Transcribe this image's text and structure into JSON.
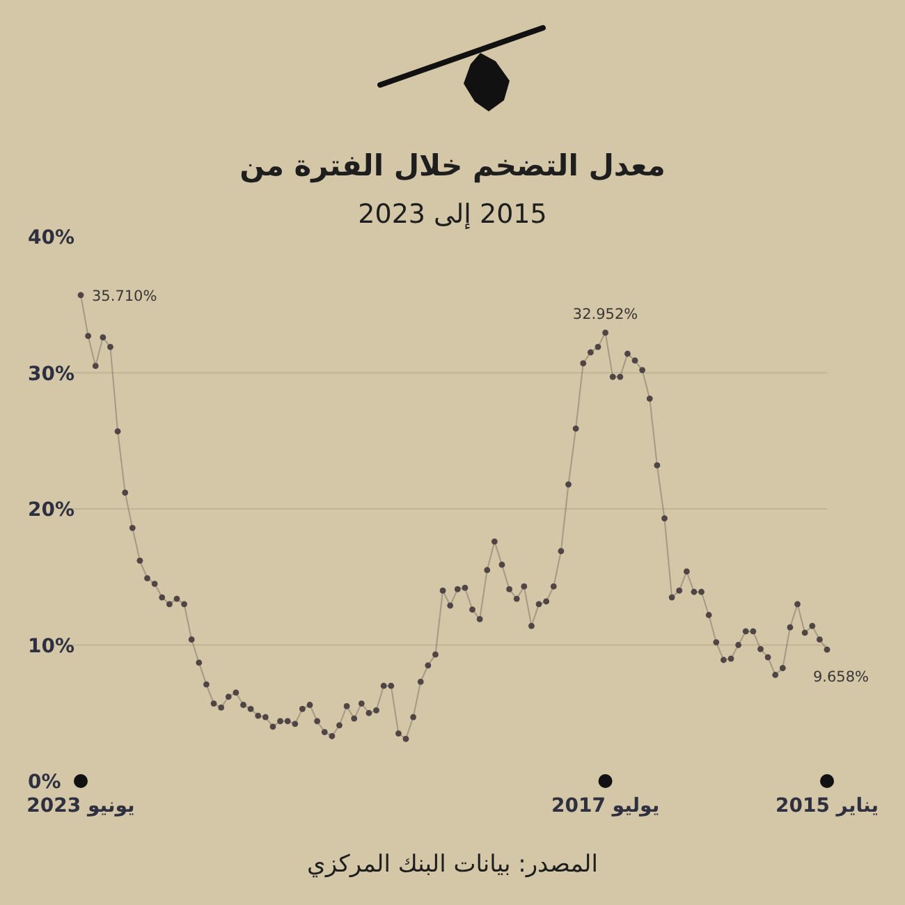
{
  "chart_data": {
    "type": "line",
    "title": "معدل التضخم خلال الفترة من",
    "subtitle": "2015 إلى 2023",
    "x": [
      "2023-06",
      "2023-05",
      "2023-04",
      "2023-03",
      "2023-02",
      "2023-01",
      "2022-12",
      "2022-11",
      "2022-10",
      "2022-09",
      "2022-08",
      "2022-07",
      "2022-06",
      "2022-05",
      "2022-04",
      "2022-03",
      "2022-02",
      "2022-01",
      "2021-12",
      "2021-11",
      "2021-10",
      "2021-09",
      "2021-08",
      "2021-07",
      "2021-06",
      "2021-05",
      "2021-04",
      "2021-03",
      "2021-02",
      "2021-01",
      "2020-12",
      "2020-11",
      "2020-10",
      "2020-09",
      "2020-08",
      "2020-07",
      "2020-06",
      "2020-05",
      "2020-04",
      "2020-03",
      "2020-02",
      "2020-01",
      "2019-12",
      "2019-11",
      "2019-10",
      "2019-09",
      "2019-08",
      "2019-07",
      "2019-06",
      "2019-05",
      "2019-04",
      "2019-03",
      "2019-02",
      "2019-01",
      "2018-12",
      "2018-11",
      "2018-10",
      "2018-09",
      "2018-08",
      "2018-07",
      "2018-06",
      "2018-05",
      "2018-04",
      "2018-03",
      "2018-02",
      "2018-01",
      "2017-12",
      "2017-11",
      "2017-10",
      "2017-09",
      "2017-08",
      "2017-07",
      "2017-06",
      "2017-05",
      "2017-04",
      "2017-03",
      "2017-02",
      "2017-01",
      "2016-12",
      "2016-11",
      "2016-10",
      "2016-09",
      "2016-08",
      "2016-07",
      "2016-06",
      "2016-05",
      "2016-04",
      "2016-03",
      "2016-02",
      "2016-01",
      "2015-12",
      "2015-11",
      "2015-10",
      "2015-09",
      "2015-08",
      "2015-07",
      "2015-06",
      "2015-05",
      "2015-04",
      "2015-03",
      "2015-02",
      "2015-01"
    ],
    "series": [
      {
        "color": "#4f4545",
        "values": [
          35.71,
          32.7,
          30.5,
          32.6,
          31.9,
          25.7,
          21.2,
          18.6,
          16.2,
          14.9,
          14.5,
          13.5,
          13.0,
          13.4,
          13.0,
          10.4,
          8.7,
          7.1,
          5.7,
          5.4,
          6.2,
          6.5,
          5.6,
          5.3,
          4.8,
          4.7,
          4.0,
          4.4,
          4.4,
          4.2,
          5.3,
          5.6,
          4.4,
          3.6,
          3.3,
          4.1,
          5.5,
          4.6,
          5.7,
          5.0,
          5.2,
          7.0,
          7.0,
          3.5,
          3.1,
          4.7,
          7.3,
          8.5,
          9.3,
          14.0,
          12.9,
          14.1,
          14.2,
          12.6,
          11.9,
          15.5,
          17.6,
          15.9,
          14.1,
          13.4,
          14.3,
          11.4,
          13.0,
          13.2,
          14.3,
          16.9,
          21.8,
          25.9,
          30.7,
          31.5,
          31.9,
          32.952,
          29.7,
          29.7,
          31.4,
          30.9,
          30.2,
          28.1,
          23.2,
          19.3,
          13.5,
          14.0,
          15.4,
          13.9,
          13.9,
          12.2,
          10.2,
          8.9,
          9.0,
          10.0,
          11.0,
          11.0,
          9.7,
          9.1,
          7.8,
          8.3,
          11.3,
          13.0,
          10.9,
          11.4,
          10.4,
          9.658
        ]
      }
    ],
    "xlim": [
      "2023-06",
      "2015-01"
    ],
    "xticks": [
      {
        "value": "2023-06",
        "label": "يونيو 2023"
      },
      {
        "value": "2017-07",
        "label": "يوليو 2017"
      },
      {
        "value": "2015-01",
        "label": "يناير 2015"
      }
    ],
    "ylim": [
      0,
      40
    ],
    "yticks": [
      {
        "value": 0,
        "label": "0%"
      },
      {
        "value": 10,
        "label": "10%"
      },
      {
        "value": 20,
        "label": "20%"
      },
      {
        "value": 30,
        "label": "30%"
      },
      {
        "value": 40,
        "label": "40%"
      }
    ],
    "grid": "y",
    "marker": "circle",
    "annotations": [
      {
        "text": "35.710%",
        "x": "2023-06",
        "y": 35.71
      },
      {
        "text": "32.952%",
        "x": "2017-07",
        "y": 32.952
      },
      {
        "text": "9.658%",
        "x": "2015-01",
        "y": 9.658
      },
      "المصدر: بيانات البنك المركزي"
    ]
  }
}
